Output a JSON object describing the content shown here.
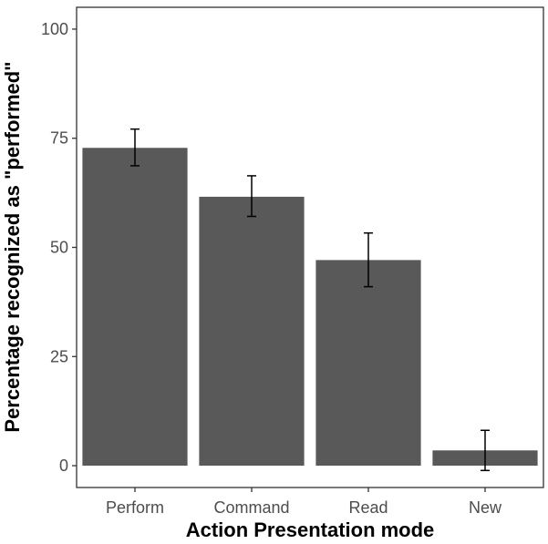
{
  "chart_data": {
    "type": "bar",
    "categories": [
      "Perform",
      "Command",
      "Read",
      "New"
    ],
    "values": [
      72.8,
      61.6,
      47.1,
      3.5
    ],
    "error_bars": [
      {
        "lower": 68.7,
        "upper": 77.1
      },
      {
        "lower": 57.1,
        "upper": 66.4
      },
      {
        "lower": 41.0,
        "upper": 53.3
      },
      {
        "lower": -1.1,
        "upper": 8.1
      }
    ],
    "title": "",
    "xlabel": "Action Presentation mode",
    "ylabel": "Percentage recognized as \"performed\"",
    "ylim": [
      -5,
      105
    ],
    "yticks": [
      0,
      25,
      50,
      75,
      100
    ],
    "ytick_labels": [
      "0",
      "25",
      "50",
      "75",
      "100"
    ],
    "grid": false,
    "legend": "none",
    "bar_color": "#595959",
    "error_bar_color": "#000000",
    "panel_border_color": "#333333",
    "tick_color": "#333333"
  }
}
